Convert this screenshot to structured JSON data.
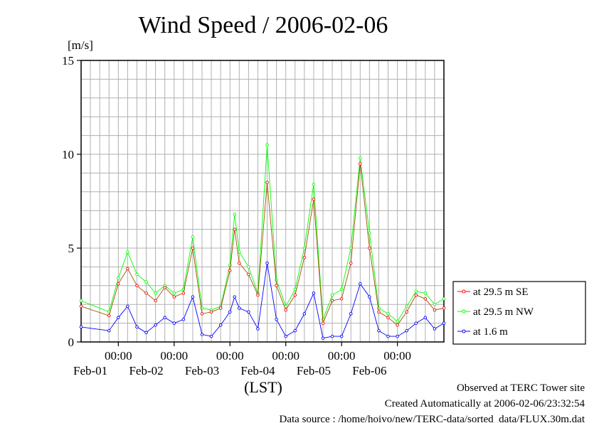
{
  "chart_data": {
    "type": "line",
    "title": "Wind Speed / 2006-02-06",
    "ylabel": "[m/s]",
    "xlabel": "(LST)",
    "ylim": [
      0,
      15
    ],
    "yticks": [
      0,
      5,
      10,
      15
    ],
    "xlim": [
      "2006-01-31T08:00",
      "2006-02-06T20:00"
    ],
    "x_time_ticks": [
      "00:00",
      "00:00",
      "00:00",
      "00:00",
      "00:00",
      "00:00"
    ],
    "x_date_labels": [
      "Feb-01",
      "Feb-02",
      "Feb-03",
      "Feb-04",
      "Feb-05",
      "Feb-06"
    ],
    "grid": true,
    "legend_position": "right",
    "series": [
      {
        "name": "at 29.5 m SE",
        "color": "#ff0000",
        "x": [
          "2006-01-31T08:00",
          "2006-01-31T20:00",
          "2006-02-01T00:00",
          "2006-02-01T04:00",
          "2006-02-01T08:00",
          "2006-02-01T12:00",
          "2006-02-01T16:00",
          "2006-02-01T20:00",
          "2006-02-02T00:00",
          "2006-02-02T04:00",
          "2006-02-02T08:00",
          "2006-02-02T12:00",
          "2006-02-02T16:00",
          "2006-02-02T20:00",
          "2006-02-03T00:00",
          "2006-02-03T02:00",
          "2006-02-03T04:00",
          "2006-02-03T08:00",
          "2006-02-03T12:00",
          "2006-02-03T16:00",
          "2006-02-03T20:00",
          "2006-02-04T00:00",
          "2006-02-04T04:00",
          "2006-02-04T08:00",
          "2006-02-04T12:00",
          "2006-02-04T16:00",
          "2006-02-04T20:00",
          "2006-02-05T00:00",
          "2006-02-05T04:00",
          "2006-02-05T08:00",
          "2006-02-05T12:00",
          "2006-02-05T16:00",
          "2006-02-05T20:00",
          "2006-02-06T00:00",
          "2006-02-06T04:00",
          "2006-02-06T08:00",
          "2006-02-06T12:00",
          "2006-02-06T16:00",
          "2006-02-06T20:00"
        ],
        "values": [
          1.9,
          1.4,
          3.1,
          3.9,
          3.0,
          2.6,
          2.2,
          2.9,
          2.4,
          2.6,
          5.0,
          1.5,
          1.6,
          1.8,
          3.8,
          6.0,
          4.2,
          3.6,
          2.5,
          8.5,
          3.0,
          1.7,
          2.5,
          4.5,
          7.6,
          1.0,
          2.2,
          2.3,
          4.2,
          9.5,
          5.0,
          1.6,
          1.3,
          0.9,
          1.6,
          2.5,
          2.3,
          1.7,
          1.8
        ]
      },
      {
        "name": "at 29.5 m NW",
        "color": "#00ff00",
        "x": [
          "2006-01-31T08:00",
          "2006-01-31T20:00",
          "2006-02-01T00:00",
          "2006-02-01T04:00",
          "2006-02-01T08:00",
          "2006-02-01T12:00",
          "2006-02-01T16:00",
          "2006-02-01T20:00",
          "2006-02-02T00:00",
          "2006-02-02T04:00",
          "2006-02-02T08:00",
          "2006-02-02T12:00",
          "2006-02-02T16:00",
          "2006-02-02T20:00",
          "2006-02-03T00:00",
          "2006-02-03T02:00",
          "2006-02-03T04:00",
          "2006-02-03T08:00",
          "2006-02-03T12:00",
          "2006-02-03T16:00",
          "2006-02-03T20:00",
          "2006-02-04T00:00",
          "2006-02-04T04:00",
          "2006-02-04T08:00",
          "2006-02-04T12:00",
          "2006-02-04T16:00",
          "2006-02-04T20:00",
          "2006-02-05T00:00",
          "2006-02-05T04:00",
          "2006-02-05T08:00",
          "2006-02-05T12:00",
          "2006-02-05T16:00",
          "2006-02-05T20:00",
          "2006-02-06T00:00",
          "2006-02-06T04:00",
          "2006-02-06T08:00",
          "2006-02-06T12:00",
          "2006-02-06T16:00",
          "2006-02-06T20:00"
        ],
        "values": [
          2.2,
          1.6,
          3.4,
          4.8,
          3.6,
          3.2,
          2.6,
          3.0,
          2.6,
          2.8,
          5.6,
          1.8,
          1.7,
          1.9,
          4.1,
          6.8,
          4.8,
          4.0,
          2.6,
          10.5,
          3.3,
          1.9,
          2.8,
          5.0,
          8.4,
          1.2,
          2.5,
          2.8,
          5.0,
          9.8,
          5.8,
          1.8,
          1.5,
          1.1,
          1.9,
          2.7,
          2.6,
          2.0,
          2.3
        ]
      },
      {
        "name": "at 1.6 m",
        "color": "#0000ff",
        "x": [
          "2006-01-31T08:00",
          "2006-01-31T20:00",
          "2006-02-01T00:00",
          "2006-02-01T04:00",
          "2006-02-01T08:00",
          "2006-02-01T12:00",
          "2006-02-01T16:00",
          "2006-02-01T20:00",
          "2006-02-02T00:00",
          "2006-02-02T04:00",
          "2006-02-02T08:00",
          "2006-02-02T12:00",
          "2006-02-02T16:00",
          "2006-02-02T20:00",
          "2006-02-03T00:00",
          "2006-02-03T02:00",
          "2006-02-03T04:00",
          "2006-02-03T08:00",
          "2006-02-03T12:00",
          "2006-02-03T16:00",
          "2006-02-03T20:00",
          "2006-02-04T00:00",
          "2006-02-04T04:00",
          "2006-02-04T08:00",
          "2006-02-04T12:00",
          "2006-02-04T16:00",
          "2006-02-04T20:00",
          "2006-02-05T00:00",
          "2006-02-05T04:00",
          "2006-02-05T08:00",
          "2006-02-05T12:00",
          "2006-02-05T16:00",
          "2006-02-05T20:00",
          "2006-02-06T00:00",
          "2006-02-06T04:00",
          "2006-02-06T08:00",
          "2006-02-06T12:00",
          "2006-02-06T16:00",
          "2006-02-06T20:00"
        ],
        "values": [
          0.8,
          0.6,
          1.3,
          1.9,
          0.8,
          0.5,
          0.9,
          1.3,
          1.0,
          1.2,
          2.4,
          0.4,
          0.3,
          0.9,
          1.6,
          2.4,
          1.8,
          1.6,
          0.7,
          4.2,
          1.2,
          0.3,
          0.6,
          1.5,
          2.6,
          0.2,
          0.3,
          0.3,
          1.5,
          3.1,
          2.4,
          0.6,
          0.3,
          0.3,
          0.6,
          1.0,
          1.3,
          0.7,
          1.0
        ]
      }
    ]
  },
  "footer": {
    "observed": "Observed at TERC Tower site",
    "created": "Created Automatically at 2006-02-06/23:32:54",
    "source": "Data source : /home/hoivo/new/TERC-data/sorted_data/FLUX.30m.dat"
  }
}
